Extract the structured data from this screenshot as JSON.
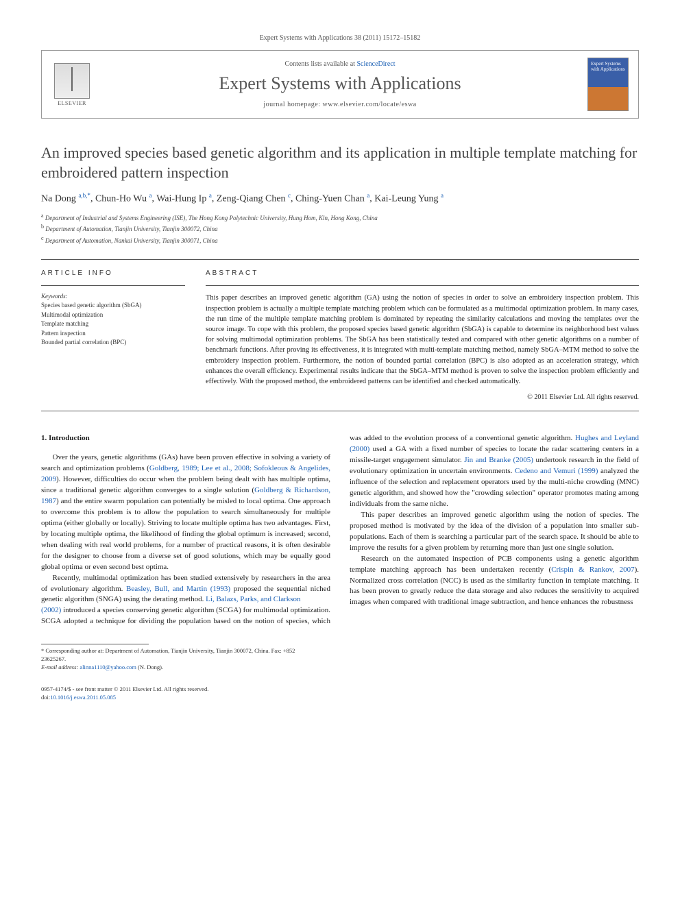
{
  "header": {
    "citation": "Expert Systems with Applications 38 (2011) 15172–15182",
    "contents_prefix": "Contents lists available at ",
    "contents_link": "ScienceDirect",
    "journal_name": "Expert Systems with Applications",
    "homepage_label": "journal homepage: ",
    "homepage_url": "www.elsevier.com/locate/eswa",
    "cover_text": "Expert Systems with Applications",
    "publisher": "ELSEVIER"
  },
  "title": "An improved species based genetic algorithm and its application in multiple template matching for embroidered pattern inspection",
  "authors_html": "Na Dong <sup class='author-link'>a,b,*</sup>, Chun-Ho Wu <sup class='author-link'>a</sup>, Wai-Hung Ip <sup class='author-link'>a</sup>, Zeng-Qiang Chen <sup class='author-link'>c</sup>, Ching-Yuen Chan <sup class='author-link'>a</sup>, Kai-Leung Yung <sup class='author-link'>a</sup>",
  "affiliations": {
    "a": "Department of Industrial and Systems Engineering (ISE), The Hong Kong Polytechnic University, Hung Hom, Kln, Hong Kong, China",
    "b": "Department of Automation, Tianjin University, Tianjin 300072, China",
    "c": "Department of Automation, Nankai University, Tianjin 300071, China"
  },
  "article_info": {
    "heading": "ARTICLE INFO",
    "keywords_label": "Keywords:",
    "keywords": [
      "Species based genetic algorithm (SbGA)",
      "Multimodal optimization",
      "Template matching",
      "Pattern inspection",
      "Bounded partial correlation (BPC)"
    ]
  },
  "abstract": {
    "heading": "ABSTRACT",
    "text": "This paper describes an improved genetic algorithm (GA) using the notion of species in order to solve an embroidery inspection problem. This inspection problem is actually a multiple template matching problem which can be formulated as a multimodal optimization problem. In many cases, the run time of the multiple template matching problem is dominated by repeating the similarity calculations and moving the templates over the source image. To cope with this problem, the proposed species based genetic algorithm (SbGA) is capable to determine its neighborhood best values for solving multimodal optimization problems. The SbGA has been statistically tested and compared with other genetic algorithms on a number of benchmark functions. After proving its effectiveness, it is integrated with multi-template matching method, namely SbGA–MTM method to solve the embroidery inspection problem. Furthermore, the notion of bounded partial correlation (BPC) is also adopted as an acceleration strategy, which enhances the overall efficiency. Experimental results indicate that the SbGA–MTM method is proven to solve the inspection problem efficiently and effectively. With the proposed method, the embroidered patterns can be identified and checked automatically.",
    "copyright": "© 2011 Elsevier Ltd. All rights reserved."
  },
  "body": {
    "section1_heading": "1. Introduction",
    "p1": "Over the years, genetic algorithms (GAs) have been proven effective in solving a variety of search and optimization problems (Goldberg, 1989; Lee et al., 2008; Sofokleous & Angelides, 2009). However, difficulties do occur when the problem being dealt with has multiple optima, since a traditional genetic algorithm converges to a single solution (Goldberg & Richardson, 1987) and the entire swarm population can potentially be misled to local optima. One approach to overcome this problem is to allow the population to search simultaneously for multiple optima (either globally or locally). Striving to locate multiple optima has two advantages. First, by locating multiple optima, the likelihood of finding the global optimum is increased; second, when dealing with real world problems, for a number of practical reasons, it is often desirable for the designer to choose from a diverse set of good solutions, which may be equally good global optima or even second best optima.",
    "p2": "Recently, multimodal optimization has been studied extensively by researchers in the area of evolutionary algorithm. Beasley, Bull, and Martin (1993) proposed the sequential niched genetic algorithm (SNGA) using the derating method. Li, Balazs, Parks, and Clarkson",
    "p3": "(2002) introduced a species conserving genetic algorithm (SCGA) for multimodal optimization. SCGA adopted a technique for dividing the population based on the notion of species, which was added to the evolution process of a conventional genetic algorithm. Hughes and Leyland (2000) used a GA with a fixed number of species to locate the radar scattering centers in a missile-target engagement simulator. Jin and Branke (2005) undertook research in the field of evolutionary optimization in uncertain environments. Cedeno and Vemuri (1999) analyzed the influence of the selection and replacement operators used by the multi-niche crowding (MNC) genetic algorithm, and showed how the \"crowding selection\" operator promotes mating among individuals from the same niche.",
    "p4": "This paper describes an improved genetic algorithm using the notion of species. The proposed method is motivated by the idea of the division of a population into smaller sub-populations. Each of them is searching a particular part of the search space. It should be able to improve the results for a given problem by returning more than just one single solution.",
    "p5": "Research on the automated inspection of PCB components using a genetic algorithm template matching approach has been undertaken recently (Crispin & Rankov, 2007). Normalized cross correlation (NCC) is used as the similarity function in template matching. It has been proven to greatly reduce the data storage and also reduces the sensitivity to acquired images when compared with traditional image subtraction, and hence enhances the robustness"
  },
  "footnotes": {
    "corresponding": "* Corresponding author at: Department of Automation, Tianjin University, Tianjin 300072, China. Fax: +852 23625267.",
    "email_label": "E-mail address:",
    "email": "alinna1110@yahoo.com",
    "email_author": "(N. Dong)."
  },
  "footer": {
    "issn_line": "0957-4174/$ - see front matter © 2011 Elsevier Ltd. All rights reserved.",
    "doi_label": "doi:",
    "doi": "10.1016/j.eswa.2011.05.085"
  }
}
